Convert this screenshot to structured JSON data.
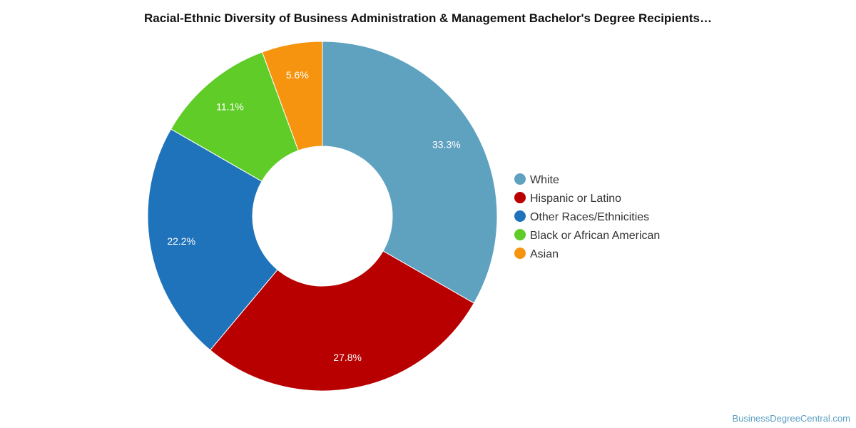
{
  "title": "Racial-Ethnic Diversity of Business Administration & Management Bachelor's Degree Recipients…",
  "watermark": "BusinessDegreeCentral.com",
  "chart_data": {
    "type": "pie",
    "variant": "donut",
    "legend_position": "right",
    "slices": [
      {
        "name": "White",
        "value": 33.3,
        "label": "33.3%",
        "color": "#5ea2c0"
      },
      {
        "name": "Hispanic or Latino",
        "value": 27.8,
        "label": "27.8%",
        "color": "#b80000"
      },
      {
        "name": "Other Races/Ethnicities",
        "value": 22.2,
        "label": "22.2%",
        "color": "#1f73ba"
      },
      {
        "name": "Black or African American",
        "value": 11.1,
        "label": "11.1%",
        "color": "#5fcc28"
      },
      {
        "name": "Asian",
        "value": 5.6,
        "label": "5.6%",
        "color": "#f7940f"
      }
    ]
  }
}
